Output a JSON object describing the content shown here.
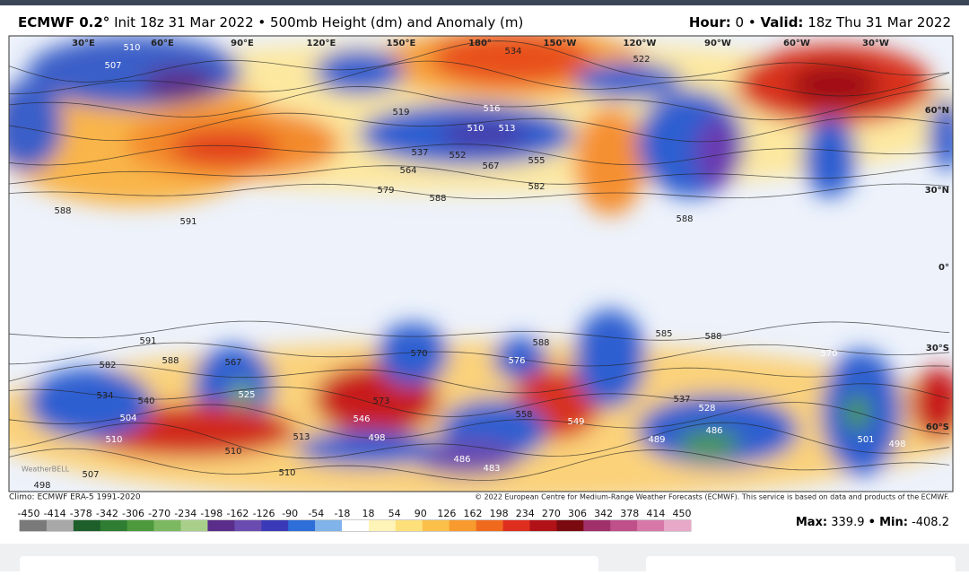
{
  "header": {
    "model": "ECMWF 0.2°",
    "description": "Init 18z 31 Mar 2022 • 500mb Height (dm) and Anomaly (m)",
    "hour_label": "Hour:",
    "hour": "0 •",
    "valid_label": "Valid:",
    "valid": "18z Thu 31 Mar 2022"
  },
  "map": {
    "longitude_labels": [
      "30°E",
      "60°E",
      "90°E",
      "120°E",
      "150°E",
      "180°",
      "150°W",
      "120°W",
      "90°W",
      "60°W",
      "30°W"
    ],
    "latitude_labels": [
      "60°N",
      "30°N",
      "0°",
      "30°S",
      "60°S"
    ],
    "contour_labels": [
      "534",
      "507",
      "510",
      "519",
      "510",
      "513",
      "516",
      "537",
      "552",
      "564",
      "567",
      "555",
      "579",
      "588",
      "582",
      "591",
      "588",
      "522",
      "588",
      "591",
      "588",
      "582",
      "567",
      "525",
      "534",
      "540",
      "504",
      "510",
      "507",
      "498",
      "510",
      "510",
      "513",
      "573",
      "546",
      "570",
      "576",
      "588",
      "558",
      "549",
      "537",
      "528",
      "486",
      "489",
      "483",
      "486",
      "498",
      "570",
      "501",
      "498",
      "585",
      "588"
    ],
    "watermark": "WeatherBELL"
  },
  "footer": {
    "climo": "Climo: ECMWF ERA-5 1991-2020",
    "copyright": "© 2022 European Centre for Medium-Range Weather Forecasts (ECMWF). This service is based on data and products of the ECMWF."
  },
  "colorbar": {
    "ticks": [
      -450,
      -414,
      -378,
      -342,
      -306,
      -270,
      -234,
      -198,
      -162,
      -126,
      -90,
      -54,
      -18,
      18,
      54,
      90,
      126,
      162,
      198,
      234,
      270,
      306,
      342,
      378,
      414,
      450
    ],
    "colors": [
      "#7a7a7a",
      "#a8a8a8",
      "#1d5e2a",
      "#2e7d32",
      "#4c9a3c",
      "#7cb860",
      "#a8d08a",
      "#5b2d8a",
      "#6a4cb0",
      "#3a3ab8",
      "#2d6ed8",
      "#7fb3ea",
      "#ffffff",
      "#fff4b8",
      "#fde07a",
      "#fbc04a",
      "#f89a2e",
      "#f06a1e",
      "#de2e1e",
      "#b01218",
      "#7a0a10",
      "#a0306a",
      "#c0508a",
      "#d878a8",
      "#e8a8c8"
    ]
  },
  "stats": {
    "max_label": "Max:",
    "max": 339.9,
    "separator": "•",
    "min_label": "Min:",
    "min": -408.2
  }
}
